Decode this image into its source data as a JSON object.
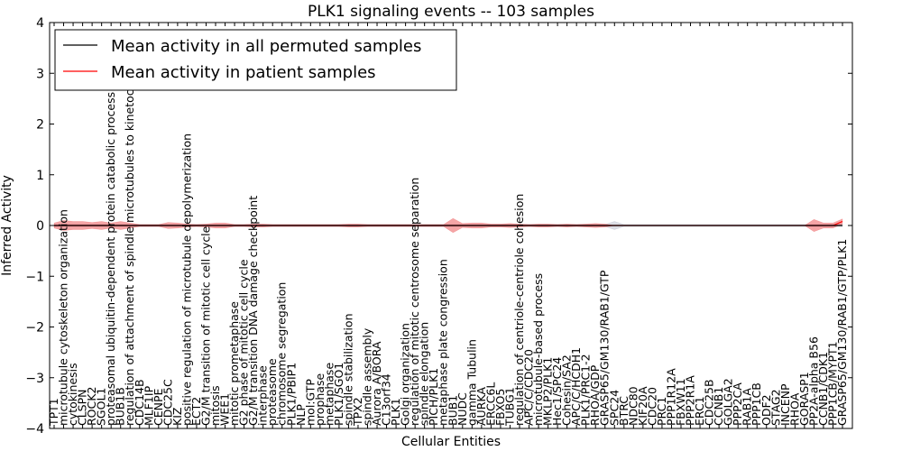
{
  "chart_data": {
    "type": "line",
    "title": "PLK1 signaling events -- 103 samples",
    "xlabel": "Cellular Entities",
    "ylabel": "Inferred Activity",
    "ylim": [
      -4,
      4
    ],
    "yticks": [
      "−4",
      "−3",
      "−2",
      "−1",
      "0",
      "1",
      "2",
      "3",
      "4"
    ],
    "grid": false,
    "legend_position": "top-left",
    "legend": [
      {
        "label": "Mean activity in all permuted samples",
        "color": "#000000"
      },
      {
        "label": "Mean activity in patient samples",
        "color": "#ff0000"
      }
    ],
    "entities": [
      "TPT1",
      "microtubule cytoskeleton organization",
      "cytokinesis",
      "CLSPN",
      "ROCK2",
      "SGOL1",
      "proteasomal ubiquitin-dependent protein catabolic process",
      "BUB1B",
      "regulation of attachment of spindle microtubules to kinetochore",
      "CDC14B",
      "MLF1IP",
      "CENPE",
      "CDC25C",
      "KIZ",
      "positive regulation of microtubule depolymerization",
      "ECT2",
      "G2/M transition of mitotic cell cycle",
      "mitosis",
      "WEE1",
      "mitotic prometaphase",
      "G2 phase of mitotic cell cycle",
      "G2/M transition DNA damage checkpoint",
      "interphase",
      "proteasome",
      "chromosome segregation",
      "PLK1/PBIP1",
      "NLP",
      "mol:GTP",
      "prophase",
      "metaphase",
      "PLK1/SGO1",
      "spindle stabilization",
      "TPX2",
      "spindle assembly",
      "Aurora A/BORA",
      "C13orf34",
      "PLK1",
      "Golgi organization",
      "regulation of mitotic centrosome separation",
      "spindle elongation",
      "PICH/PLK1",
      "metaphase plate congression",
      "BUB1",
      "NUDC",
      "gamma Tubulin",
      "AURKA",
      "ERCC6L",
      "FBXO5",
      "TUBG1",
      "regulation of centriole-centriole cohesion",
      "APC/C/CDC20",
      "microtubule-based process",
      "MKLP2/PLK1",
      "Hec1/SPC24",
      "Cohesin/SA2",
      "APC/C/HCDH1",
      "PLK1/PRC1-2",
      "RHOA/GDP",
      "GRASP65/GM130/RAB1/GTP",
      "SPC24",
      "BTRC",
      "NDC80",
      "KIF20A",
      "CDC20",
      "PRC1",
      "PPP1R12A",
      "FBXW11",
      "PPP2R1A",
      "ERC1",
      "CDC25B",
      "CCNB1",
      "GOLGA2",
      "PPP2CA",
      "RAB1A",
      "PPP1CB",
      "ODF2",
      "STAG2",
      "INCENP",
      "RHOA",
      "GORASP1",
      "PP2A-alpha B56",
      "CCNB1/CDK1",
      "PPP1CB/MYPT1",
      "GRASP65/GM130/RAB1/GTP/PLK1"
    ],
    "series": [
      {
        "name": "Mean activity in all permuted samples",
        "values": [
          0,
          0,
          0,
          0,
          0,
          0,
          0,
          0,
          0,
          0,
          0,
          0,
          0,
          0,
          0,
          0,
          0,
          0,
          0,
          0,
          0,
          0,
          0,
          0,
          0,
          0,
          0,
          0,
          0,
          0,
          0,
          0,
          0,
          0,
          0,
          0,
          0,
          0,
          0,
          0,
          0,
          0,
          0,
          0,
          0,
          0,
          0,
          0,
          0,
          0,
          0,
          0,
          0,
          0,
          0,
          0,
          0,
          0,
          0,
          0,
          0,
          0,
          0,
          0,
          0,
          0,
          0,
          0,
          0,
          0,
          0,
          0,
          0,
          0,
          0,
          0,
          0,
          0,
          0,
          0,
          0,
          0,
          0,
          0
        ]
      },
      {
        "name": "Mean activity in patient samples",
        "values": [
          0,
          0,
          0,
          0,
          0,
          0,
          0,
          0,
          0,
          0,
          0,
          0,
          0,
          0,
          0,
          0,
          0,
          0,
          0,
          0,
          0,
          0,
          0,
          0,
          0,
          0,
          0,
          0,
          0,
          0,
          0,
          0,
          0,
          0,
          0,
          0,
          0,
          0,
          0,
          0,
          0,
          0,
          0,
          0,
          0,
          0,
          0,
          0,
          0,
          0,
          0,
          0,
          0,
          0,
          0,
          0,
          0,
          0,
          0,
          0,
          0,
          0,
          0,
          0,
          0,
          0,
          0,
          0,
          0,
          0,
          0,
          0,
          0,
          0,
          0,
          0,
          0,
          0,
          0,
          0,
          0,
          0,
          0,
          0.08
        ]
      }
    ],
    "patient_band_halfwidth": [
      0.05,
      0.1,
      0.08,
      0.08,
      0.06,
      0.08,
      0.05,
      0.08,
      0.05,
      0.02,
      0.02,
      0.02,
      0.06,
      0.05,
      0.03,
      0.02,
      0.03,
      0.05,
      0.05,
      0.02,
      0.02,
      0.03,
      0.03,
      0.02,
      0.02,
      0.02,
      0.02,
      0.02,
      0.02,
      0.02,
      0.02,
      0.03,
      0.03,
      0.02,
      0.02,
      0.02,
      0.02,
      0.02,
      0.02,
      0.02,
      0.02,
      0.02,
      0.14,
      0.04,
      0.05,
      0.05,
      0.03,
      0.03,
      0.04,
      0.03,
      0.02,
      0.03,
      0.03,
      0.02,
      0.03,
      0.02,
      0.03,
      0.04,
      0.03,
      0,
      0,
      0,
      0,
      0,
      0,
      0,
      0,
      0,
      0,
      0,
      0,
      0,
      0,
      0,
      0,
      0,
      0,
      0,
      0,
      0,
      0.12,
      0.05,
      0.05,
      0.05
    ],
    "permuted_band_halfwidth": [
      0.02,
      0.02,
      0.02,
      0.02,
      0.02,
      0.02,
      0.02,
      0.02,
      0.02,
      0.02,
      0.02,
      0.02,
      0.02,
      0.02,
      0.02,
      0.02,
      0.02,
      0.02,
      0.02,
      0.02,
      0.02,
      0.02,
      0.02,
      0.02,
      0.02,
      0.02,
      0.02,
      0.02,
      0.02,
      0.02,
      0.02,
      0.02,
      0.02,
      0.02,
      0.02,
      0.02,
      0.02,
      0.02,
      0.02,
      0.02,
      0.02,
      0.02,
      0.02,
      0.02,
      0.02,
      0.02,
      0.02,
      0.02,
      0.02,
      0.02,
      0.02,
      0.02,
      0.02,
      0.02,
      0.02,
      0.02,
      0.02,
      0.02,
      0.02,
      0.08,
      0.02,
      0.02,
      0.02,
      0.02,
      0.02,
      0.02,
      0.02,
      0.02,
      0.02,
      0.02,
      0.02,
      0.02,
      0.02,
      0.02,
      0.02,
      0.02,
      0.02,
      0.02,
      0.02,
      0.02,
      0.02,
      0.02,
      0.02,
      0.02
    ]
  }
}
